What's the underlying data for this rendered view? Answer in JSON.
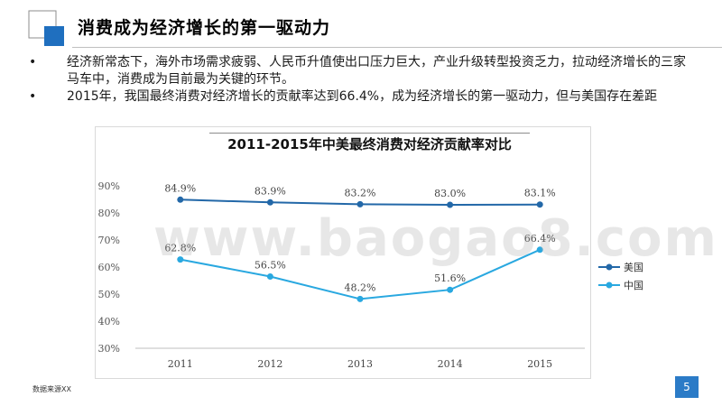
{
  "header": {
    "title": "消费成为经济增长的第一驱动力"
  },
  "bullets": [
    {
      "marker": "•",
      "text": "经济新常态下，海外市场需求疲弱、人民币升值使出口压力巨大，产业升级转型投资乏力，拉动经济增长的三家马车中，消费成为目前最为关键的环节。"
    },
    {
      "marker": "•",
      "text": "2015年，我国最终消费对经济增长的贡献率达到66.4%，成为经济增长的第一驱动力，但与美国存在差距"
    }
  ],
  "colors": {
    "accent": "#2b7bc7",
    "logo_blue": "#1f6fbf",
    "us_series": "#2368a8",
    "cn_series": "#29a8e0"
  },
  "chart_data": {
    "type": "line",
    "title": "2011-2015年中美最终消费对经济贡献率对比",
    "categories": [
      "2011",
      "2012",
      "2013",
      "2014",
      "2015"
    ],
    "ylim": [
      30,
      90
    ],
    "yticks": [
      "30%",
      "40%",
      "50%",
      "60%",
      "70%",
      "80%",
      "90%"
    ],
    "grid": false,
    "legend": "right",
    "series": [
      {
        "name": "美国",
        "values": [
          84.9,
          83.9,
          83.2,
          83.0,
          83.1
        ],
        "labels": [
          "84.9%",
          "83.9%",
          "83.2%",
          "83.0%",
          "83.1%"
        ],
        "color": "#2368a8"
      },
      {
        "name": "中国",
        "values": [
          62.8,
          56.5,
          48.2,
          51.6,
          66.4
        ],
        "labels": [
          "62.8%",
          "56.5%",
          "48.2%",
          "51.6%",
          "66.4%"
        ],
        "color": "#29a8e0"
      }
    ]
  },
  "watermark": "www.baogao8.com",
  "footer": {
    "source": "数据来源XX",
    "page_number": "5"
  }
}
